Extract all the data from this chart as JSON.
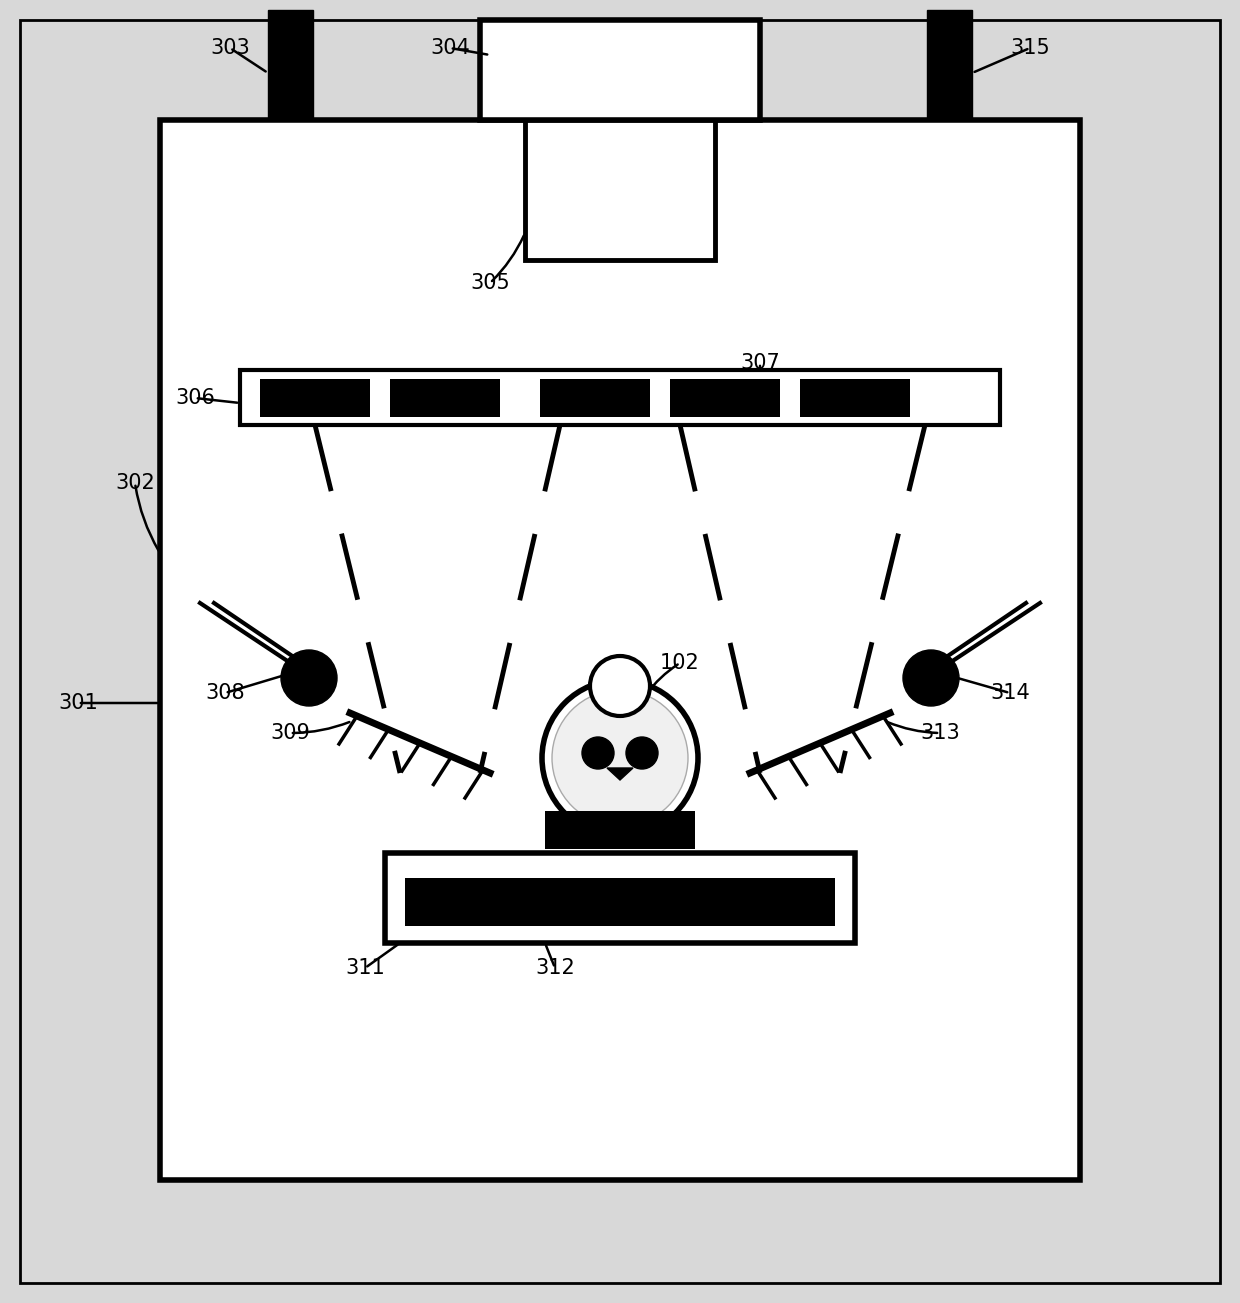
{
  "bg_color": "#d8d8d8",
  "inner_bg": "#ffffff",
  "line_color": "#000000",
  "font_size": 15,
  "fig_w": 12.4,
  "fig_h": 13.03
}
